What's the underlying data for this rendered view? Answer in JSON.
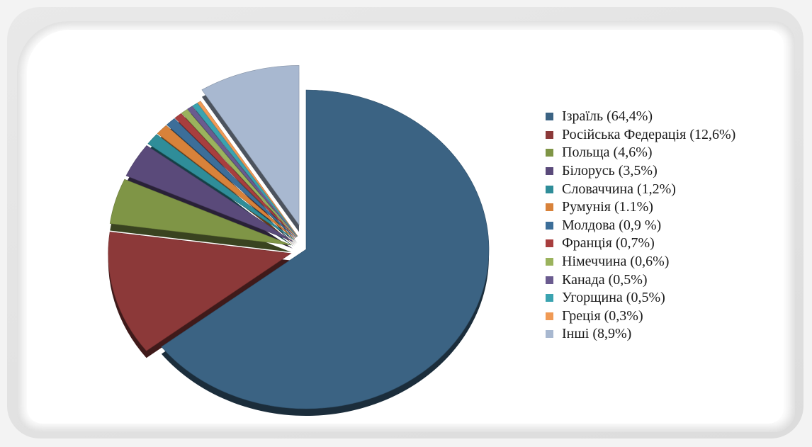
{
  "chart_data": {
    "type": "pie",
    "title": "",
    "legend_position": "right",
    "slices": [
      {
        "name": "Ізраїль (64,4%)",
        "value": 64.4,
        "color": "#3b6383"
      },
      {
        "name": "Російська Федерація (12,6%)",
        "value": 12.6,
        "color": "#8c3939"
      },
      {
        "name": "Польща (4,6%)",
        "value": 4.6,
        "color": "#7f9546"
      },
      {
        "name": "Білорусь (3,5%)",
        "value": 3.5,
        "color": "#5a4a7a"
      },
      {
        "name": "Словаччина (1,2%)",
        "value": 1.2,
        "color": "#2f8d99"
      },
      {
        "name": "Румунія (1.1%)",
        "value": 1.1,
        "color": "#d8823a"
      },
      {
        "name": "Молдова (0,9 %)",
        "value": 0.9,
        "color": "#3c6e99"
      },
      {
        "name": "Франція (0,7%)",
        "value": 0.7,
        "color": "#a83e3e"
      },
      {
        "name": "Німеччина (0,6%)",
        "value": 0.6,
        "color": "#9bb35d"
      },
      {
        "name": "Канада (0,5%)",
        "value": 0.5,
        "color": "#6a5b8f"
      },
      {
        "name": "Угорщина (0,5%)",
        "value": 0.5,
        "color": "#3aa3b0"
      },
      {
        "name": "Греція (0,3%)",
        "value": 0.3,
        "color": "#f09a55"
      },
      {
        "name": "Інші (8,9%)",
        "value": 8.9,
        "color": "#a8b8d0"
      }
    ]
  }
}
